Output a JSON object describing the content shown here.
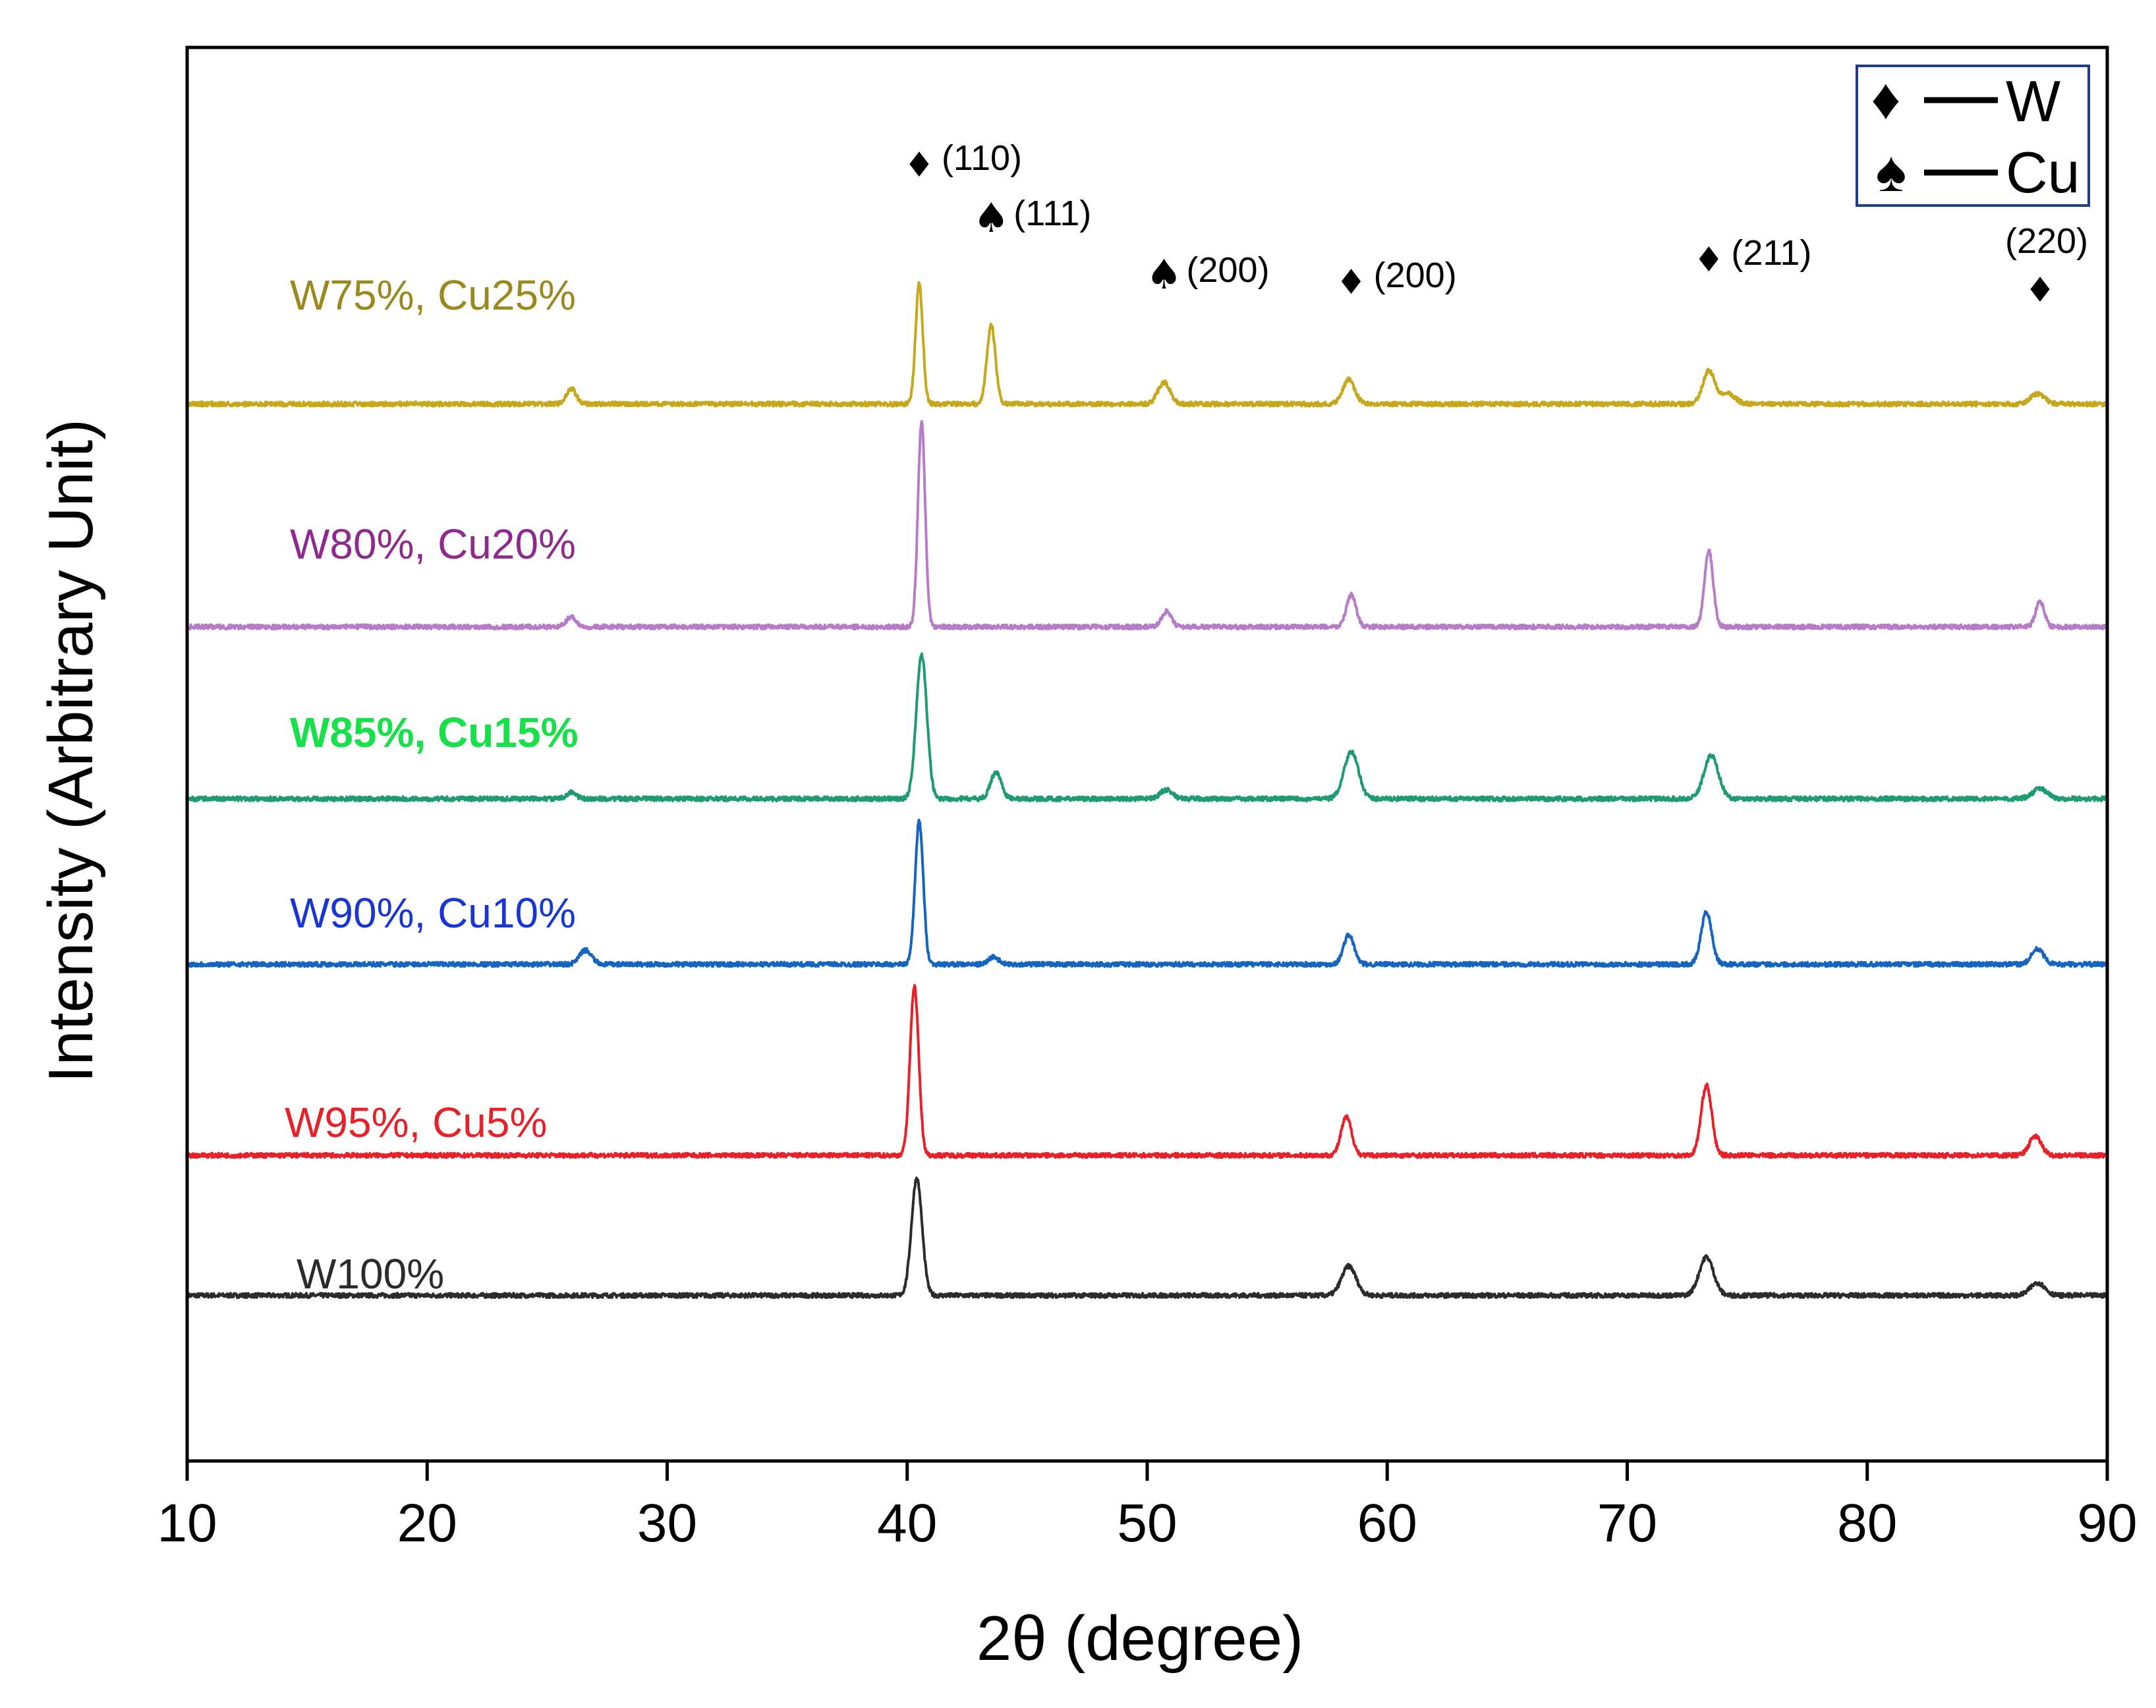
{
  "chart_data": {
    "type": "line",
    "title": "",
    "xlabel": "2θ (degree)",
    "ylabel": "Intensity (Arbitrary Unit)",
    "xlim": [
      10,
      90
    ],
    "xticks": [
      10,
      20,
      30,
      40,
      50,
      60,
      70,
      80,
      90
    ],
    "yticks": [],
    "grid": false,
    "legend": {
      "placement": "top-right",
      "entries": [
        {
          "symbol": "♦",
          "label": "W"
        },
        {
          "symbol": "♠",
          "label": "Cu"
        }
      ]
    },
    "series": [
      {
        "name": "W100%",
        "color": "#2b2b2b",
        "baseline": 0,
        "peaks": [
          {
            "x": 40.4,
            "height": 9.2,
            "width": 0.22
          },
          {
            "x": 58.4,
            "height": 2.3,
            "width": 0.3
          },
          {
            "x": 73.3,
            "height": 3.0,
            "width": 0.3
          },
          {
            "x": 87.1,
            "height": 1.0,
            "width": 0.3
          }
        ]
      },
      {
        "name": "W95%, Cu5%",
        "color": "#e8202a",
        "baseline": 11,
        "peaks": [
          {
            "x": 40.3,
            "height": 13.3,
            "width": 0.18
          },
          {
            "x": 58.3,
            "height": 3.0,
            "width": 0.22
          },
          {
            "x": 73.3,
            "height": 5.5,
            "width": 0.22
          },
          {
            "x": 87.0,
            "height": 1.5,
            "width": 0.25
          }
        ]
      },
      {
        "name": "W90%, Cu10%",
        "color": "#1565c0",
        "baseline": 26,
        "peaks": [
          {
            "x": 26.6,
            "height": 1.1,
            "width": 0.25
          },
          {
            "x": 40.5,
            "height": 11.2,
            "width": 0.17
          },
          {
            "x": 43.6,
            "height": 0.6,
            "width": 0.2
          },
          {
            "x": 58.4,
            "height": 2.3,
            "width": 0.22
          },
          {
            "x": 73.3,
            "height": 4.1,
            "width": 0.22
          },
          {
            "x": 87.1,
            "height": 1.2,
            "width": 0.25
          }
        ]
      },
      {
        "name": "W85%, Cu15%",
        "color": "#1e9b73",
        "baseline": 39,
        "peaks": [
          {
            "x": 26.0,
            "height": 0.5,
            "width": 0.2
          },
          {
            "x": 40.6,
            "height": 11.3,
            "width": 0.22
          },
          {
            "x": 43.7,
            "height": 2.1,
            "width": 0.22
          },
          {
            "x": 50.8,
            "height": 0.7,
            "width": 0.25
          },
          {
            "x": 58.5,
            "height": 3.7,
            "width": 0.3
          },
          {
            "x": 73.5,
            "height": 3.4,
            "width": 0.3
          },
          {
            "x": 87.2,
            "height": 0.8,
            "width": 0.3
          }
        ]
      },
      {
        "name": "W80%, Cu20%",
        "color": "#b77cc8",
        "baseline": 52.5,
        "peaks": [
          {
            "x": 26.0,
            "height": 0.8,
            "width": 0.2
          },
          {
            "x": 40.6,
            "height": 16.1,
            "width": 0.15
          },
          {
            "x": 50.8,
            "height": 1.2,
            "width": 0.2
          },
          {
            "x": 58.5,
            "height": 2.5,
            "width": 0.2
          },
          {
            "x": 73.4,
            "height": 6.0,
            "width": 0.18
          },
          {
            "x": 87.2,
            "height": 2.0,
            "width": 0.18
          }
        ]
      },
      {
        "name": "W75%, Cu25%",
        "color": "#c5a81c",
        "baseline": 70,
        "peaks": [
          {
            "x": 26.0,
            "height": 1.2,
            "width": 0.2
          },
          {
            "x": 40.5,
            "height": 9.4,
            "width": 0.15
          },
          {
            "x": 43.5,
            "height": 6.2,
            "width": 0.18
          },
          {
            "x": 50.7,
            "height": 1.7,
            "width": 0.25
          },
          {
            "x": 58.4,
            "height": 1.9,
            "width": 0.25
          },
          {
            "x": 73.4,
            "height": 2.6,
            "width": 0.25
          },
          {
            "x": 74.2,
            "height": 0.8,
            "width": 0.3
          },
          {
            "x": 87.1,
            "height": 0.8,
            "width": 0.3
          }
        ]
      }
    ],
    "ylim": [
      -13,
      98
    ],
    "annotations": [
      {
        "symbol": "♦",
        "label": "(110)",
        "x": 40.5
      },
      {
        "symbol": "♠",
        "label": "(111)",
        "x": 43.5
      },
      {
        "symbol": "♠",
        "label": "(200)",
        "x": 50.7
      },
      {
        "symbol": "♦",
        "label": "(200)",
        "x": 58.5
      },
      {
        "symbol": "♦",
        "label": "(211)",
        "x": 73.4
      },
      {
        "symbol": "♦",
        "label": "(220)",
        "x": 87.2
      }
    ]
  },
  "colors": {
    "axis": "#000000",
    "legend_border": "#1f3c88",
    "label_W100": "#2b2b2b",
    "label_W95": "#e8202a",
    "label_W90": "#1a35d6",
    "label_W85": "#18e04a",
    "label_W80": "#8e2a8e",
    "label_W75": "#9a8a1e"
  }
}
